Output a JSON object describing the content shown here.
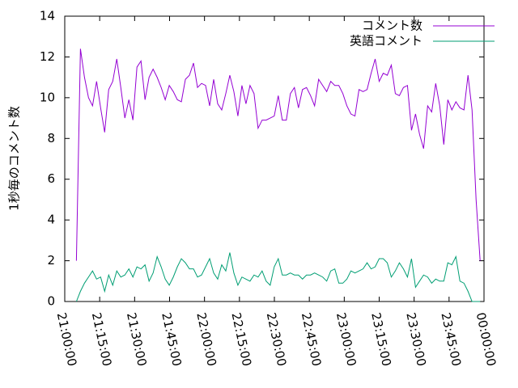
{
  "chart_data": {
    "type": "line",
    "ylabel": "1秒毎のコメント数",
    "x": [
      "21:05:00",
      "21:06:44",
      "21:08:28",
      "21:10:12",
      "21:11:56",
      "21:13:40",
      "21:15:24",
      "21:17:08",
      "21:18:52",
      "21:20:36",
      "21:22:20",
      "21:24:04",
      "21:25:48",
      "21:27:32",
      "21:29:16",
      "21:31:00",
      "21:32:44",
      "21:34:28",
      "21:36:12",
      "21:37:56",
      "21:39:40",
      "21:41:24",
      "21:43:08",
      "21:44:52",
      "21:46:36",
      "21:48:20",
      "21:50:04",
      "21:51:48",
      "21:53:32",
      "21:55:16",
      "21:57:00",
      "21:58:44",
      "22:00:28",
      "22:02:12",
      "22:03:56",
      "22:05:40",
      "22:07:24",
      "22:09:08",
      "22:10:52",
      "22:12:36",
      "22:14:20",
      "22:16:04",
      "22:17:48",
      "22:19:32",
      "22:21:16",
      "22:23:00",
      "22:24:44",
      "22:26:28",
      "22:28:12",
      "22:29:56",
      "22:31:40",
      "22:33:24",
      "22:35:08",
      "22:36:52",
      "22:38:36",
      "22:40:20",
      "22:42:04",
      "22:43:48",
      "22:45:32",
      "22:47:16",
      "22:49:00",
      "22:50:44",
      "22:52:28",
      "22:54:12",
      "22:55:56",
      "22:57:40",
      "22:59:24",
      "23:01:08",
      "23:02:52",
      "23:04:36",
      "23:06:20",
      "23:08:04",
      "23:09:48",
      "23:11:32",
      "23:13:16",
      "23:15:00",
      "23:16:44",
      "23:18:28",
      "23:20:12",
      "23:21:56",
      "23:23:40",
      "23:25:24",
      "23:27:08",
      "23:28:52",
      "23:30:36",
      "23:32:20",
      "23:34:04",
      "23:35:48",
      "23:37:32",
      "23:39:16",
      "23:41:00",
      "23:42:44",
      "23:44:28",
      "23:46:12",
      "23:47:56",
      "23:49:40",
      "23:51:24",
      "23:53:08",
      "23:54:52",
      "23:56:36",
      "23:58:20"
    ],
    "series": [
      {
        "name": "コメント数",
        "color": "#9400d3",
        "values": [
          2,
          12.4,
          11,
          10,
          9.6,
          10.8,
          9.5,
          8.3,
          10.4,
          10.8,
          11.9,
          10.5,
          9,
          9.9,
          8.9,
          11.5,
          11.8,
          9.9,
          11,
          11.4,
          11,
          10.5,
          9.9,
          10.6,
          10.3,
          9.9,
          9.8,
          10.9,
          11.1,
          11.7,
          10.5,
          10.7,
          10.6,
          9.6,
          10.9,
          9.7,
          9.4,
          10.2,
          11.1,
          10.3,
          9.1,
          10.6,
          9.7,
          10.6,
          10.2,
          8.5,
          8.9,
          8.9,
          9,
          9.1,
          10.1,
          8.9,
          8.9,
          10.2,
          10.5,
          9.5,
          10.4,
          10.5,
          10.1,
          9.6,
          10.9,
          10.6,
          10.3,
          10.8,
          10.6,
          10.6,
          10.2,
          9.6,
          9.2,
          9.1,
          10.4,
          10.3,
          10.4,
          11.2,
          11.9,
          10.8,
          11.2,
          11.1,
          11.6,
          10.2,
          10.1,
          10.5,
          10.6,
          8.4,
          9.2,
          8.2,
          7.5,
          9.6,
          9.3,
          10.7,
          9.6,
          7.7,
          9.9,
          9.4,
          9.8,
          9.5,
          9.4,
          11.1,
          9.4,
          5,
          2
        ]
      },
      {
        "name": "英語コメント",
        "color": "#009e73",
        "values": [
          0,
          0.5,
          0.9,
          1.2,
          1.5,
          1.1,
          1.2,
          0.5,
          1.3,
          0.8,
          1.5,
          1.2,
          1.3,
          1.6,
          1.2,
          1.7,
          1.6,
          1.8,
          1.0,
          1.4,
          2.2,
          1.7,
          1.1,
          0.8,
          1.2,
          1.7,
          2.1,
          1.9,
          1.6,
          1.6,
          1.2,
          1.3,
          1.7,
          2.1,
          1.4,
          1.1,
          1.8,
          1.5,
          2.4,
          1.4,
          0.8,
          1.2,
          1.1,
          1.0,
          1.3,
          1.2,
          1.5,
          1.0,
          0.8,
          1.7,
          2.1,
          1.3,
          1.3,
          1.4,
          1.3,
          1.3,
          1.1,
          1.3,
          1.3,
          1.4,
          1.3,
          1.2,
          1.0,
          1.5,
          1.6,
          0.9,
          0.9,
          1.1,
          1.5,
          1.4,
          1.5,
          1.6,
          1.9,
          1.6,
          1.7,
          2.1,
          2.1,
          1.9,
          1.2,
          1.5,
          1.9,
          1.6,
          1.2,
          2.1,
          0.7,
          1.0,
          1.3,
          1.2,
          0.9,
          1.1,
          1.0,
          1.0,
          1.9,
          1.8,
          2.2,
          1.0,
          0.9,
          0.5,
          0,
          0,
          0
        ]
      }
    ],
    "xlim": [
      "21:00:00",
      "00:00:00"
    ],
    "xticks": [
      "21:00:00",
      "21:15:00",
      "21:30:00",
      "21:45:00",
      "22:00:00",
      "22:15:00",
      "22:30:00",
      "22:45:00",
      "23:00:00",
      "23:15:00",
      "23:30:00",
      "23:45:00",
      "00:00:00"
    ],
    "ylim": [
      0,
      14
    ],
    "yticks": [
      0,
      2,
      4,
      6,
      8,
      10,
      12,
      14
    ],
    "legend": "upper right"
  }
}
